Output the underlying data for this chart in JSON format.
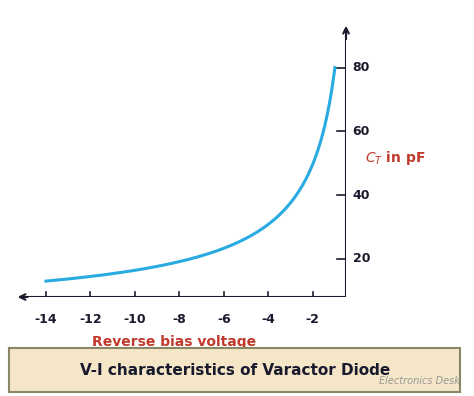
{
  "title": "V-I characteristics of Varactor Diode",
  "xlabel": "Reverse bias voltage",
  "bg_color": "#ffffff",
  "plot_bg_color": "#ffffff",
  "curve_color": "#29abe2",
  "xlabel_color": "#c0392b",
  "ylabel_color": "#c0392b",
  "title_bg_color": "#f5e6c8",
  "title_text_color": "#1a1a2e",
  "axis_color": "#1a1a2e",
  "tick_color": "#1a1a2e",
  "watermark": "Electronics Desk",
  "x_min": -15.0,
  "x_max": -0.5,
  "y_min": 8,
  "y_max": 90,
  "xticks": [
    -14,
    -12,
    -10,
    -8,
    -6,
    -4,
    -2
  ],
  "yticks": [
    20,
    40,
    60,
    80
  ],
  "curve_xstart": -14.0,
  "curve_xend": -1.0,
  "curve_A": 80.0,
  "curve_n": 0.689,
  "curve_linewidth": 2.2
}
